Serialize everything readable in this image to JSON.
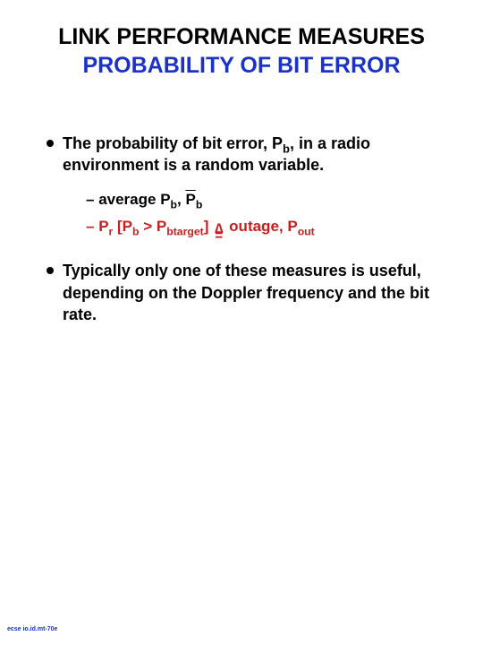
{
  "title": {
    "line1": "LINK PERFORMANCE MEASURES",
    "line2": "PROBABILITY OF BIT ERROR",
    "line1_color": "#000000",
    "line2_color": "#1a32c8",
    "line1_fontsize": 25,
    "line2_fontsize": 25
  },
  "bullets": [
    {
      "lead": "The probability of bit error, P",
      "lead_sub": "b",
      "tail": ", in a radio environment is a random variable.",
      "color": "#000000",
      "fontsize": 18,
      "subs": [
        {
          "dash": "–",
          "pre": " average P",
          "sub1": "b",
          "mid": ", ",
          "over": "P",
          "sub2": "b",
          "color": "#000000",
          "fontsize": 17
        },
        {
          "dash": "–",
          "pre": " P",
          "sub_r": "r",
          "open": " [P",
          "sub_b": "b",
          "gt": " > P",
          "sub_bt": "btarget",
          "close": "] ",
          "tri_top": "∆",
          "tri_bot": "=",
          "out_lead": " outage, P",
          "sub_out": "out",
          "color": "#c81e1e",
          "fontsize": 17
        }
      ]
    },
    {
      "text": "Typically only one of these measures is useful, depending on the Doppler frequency and the bit rate.",
      "color": "#000000",
      "fontsize": 18
    }
  ],
  "footer": {
    "text": "ecse io.id.mt-70e",
    "color": "#1a32c8",
    "fontsize": 7
  },
  "background_color": "#ffffff"
}
